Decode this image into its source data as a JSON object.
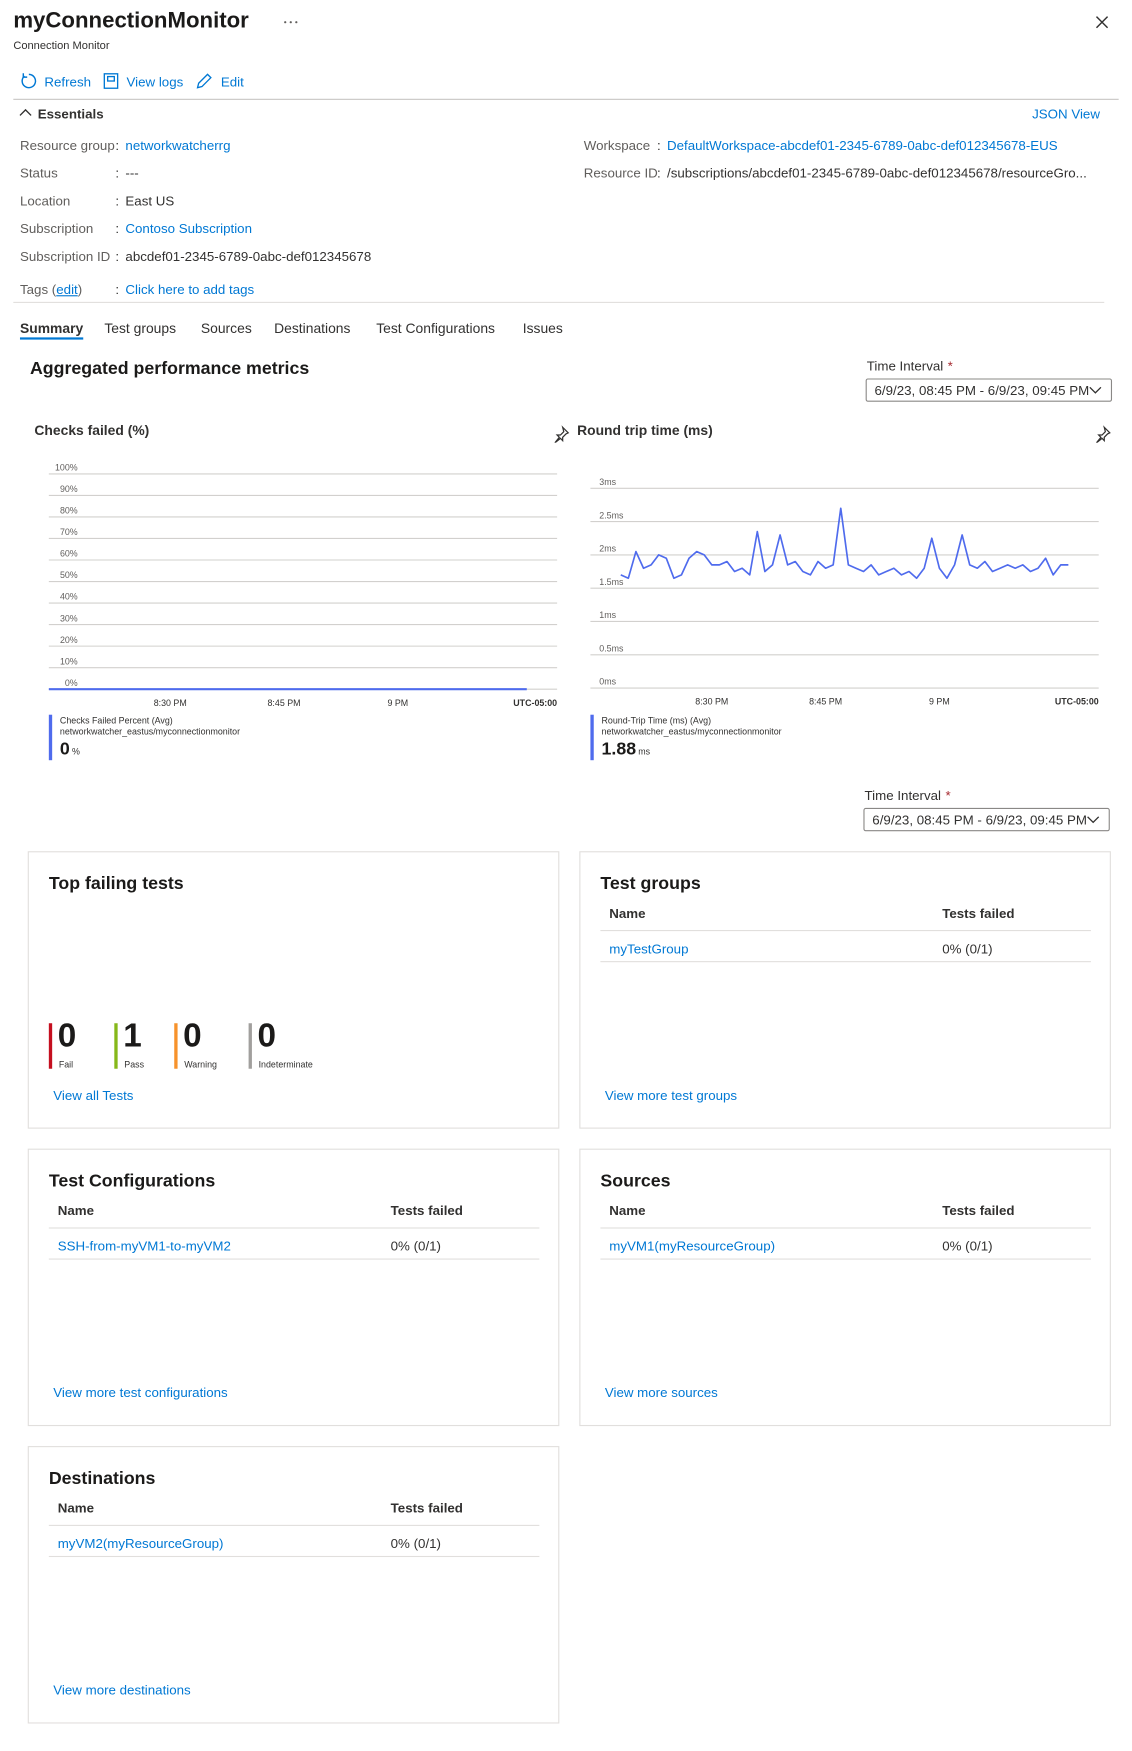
{
  "header": {
    "title": "myConnectionMonitor",
    "subtitle": "Connection Monitor"
  },
  "toolbar": [
    "Refresh",
    "View logs",
    "Edit"
  ],
  "essentials": {
    "heading": "Essentials",
    "json_view": "JSON View",
    "separator": ":",
    "left": [
      {
        "label": "Resource group",
        "value": "networkwatcherrg",
        "link": true
      },
      {
        "label": "Status",
        "value": "---",
        "link": false
      },
      {
        "label": "Location",
        "value": "East US",
        "link": false
      },
      {
        "label": "Subscription",
        "value": "Contoso Subscription",
        "link": true
      },
      {
        "label": "Subscription ID",
        "value": "abcdef01-2345-6789-0abc-def012345678",
        "link": false
      }
    ],
    "tags": {
      "prefix": "Tags (",
      "edit": "edit",
      "suffix": ")",
      "value": "Click here to add tags"
    },
    "right": [
      {
        "label": "Workspace",
        "value": "DefaultWorkspace-abcdef01-2345-6789-0abc-def012345678-EUS",
        "link": true
      },
      {
        "label": "Resource ID",
        "value": "/subscriptions/abcdef01-2345-6789-0abc-def012345678/resourceGro...",
        "link": false
      }
    ]
  },
  "tabs": {
    "items": [
      "Summary",
      "Test groups",
      "Sources",
      "Destinations",
      "Test Configurations",
      "Issues"
    ],
    "active": 0
  },
  "metrics": {
    "heading": "Aggregated performance metrics",
    "time_interval": {
      "label": "Time Interval",
      "required": "*",
      "value": "6/9/23, 08:45 PM - 6/9/23, 09:45 PM"
    }
  },
  "chart_data": [
    {
      "type": "line",
      "title": "Checks failed (%)",
      "grid": true,
      "xlim": [
        1214,
        1281
      ],
      "ylim": [
        0,
        100
      ],
      "xticks": [
        {
          "value": 1230,
          "label": "8:30 PM"
        },
        {
          "value": 1245,
          "label": "8:45 PM"
        },
        {
          "value": 1260,
          "label": "9 PM"
        }
      ],
      "timezone": "UTC-05:00",
      "yticks": [
        {
          "value": 0,
          "label": "0%"
        },
        {
          "value": 10,
          "label": "10%"
        },
        {
          "value": 20,
          "label": "20%"
        },
        {
          "value": 30,
          "label": "30%"
        },
        {
          "value": 40,
          "label": "40%"
        },
        {
          "value": 50,
          "label": "50%"
        },
        {
          "value": 60,
          "label": "60%"
        },
        {
          "value": 70,
          "label": "70%"
        },
        {
          "value": 80,
          "label": "80%"
        },
        {
          "value": 90,
          "label": "90%"
        },
        {
          "value": 100,
          "label": "100%"
        }
      ],
      "x": [
        1214,
        1215,
        1216,
        1217,
        1218,
        1219,
        1220,
        1221,
        1222,
        1223,
        1224,
        1225,
        1226,
        1227,
        1228,
        1229,
        1230,
        1231,
        1232,
        1233,
        1234,
        1235,
        1236,
        1237,
        1238,
        1239,
        1240,
        1241,
        1242,
        1243,
        1244,
        1245,
        1246,
        1247,
        1248,
        1249,
        1250,
        1251,
        1252,
        1253,
        1254,
        1255,
        1256,
        1257,
        1258,
        1259,
        1260,
        1261,
        1262,
        1263,
        1264,
        1265,
        1266,
        1267,
        1268,
        1269,
        1270,
        1271,
        1272,
        1273,
        1274,
        1275,
        1276,
        1277
      ],
      "series": [
        {
          "name": "Checks Failed Percent (Avg)",
          "resource": "networkwatcher_eastus/myconnectionmonitor",
          "color": "#4f6bed",
          "summary_value": 0,
          "summary_unit": "%",
          "values": [
            0,
            0,
            0,
            0,
            0,
            0,
            0,
            0,
            0,
            0,
            0,
            0,
            0,
            0,
            0,
            0,
            0,
            0,
            0,
            0,
            0,
            0,
            0,
            0,
            0,
            0,
            0,
            0,
            0,
            0,
            0,
            0,
            0,
            0,
            0,
            0,
            0,
            0,
            0,
            0,
            0,
            0,
            0,
            0,
            0,
            0,
            0,
            0,
            0,
            0,
            0,
            0,
            0,
            0,
            0,
            0,
            0,
            0,
            0,
            0,
            0,
            0,
            0,
            0
          ]
        }
      ]
    },
    {
      "type": "line",
      "title": "Round trip time (ms)",
      "grid": true,
      "xlim": [
        1214,
        1281
      ],
      "ylim": [
        0,
        3
      ],
      "xticks": [
        {
          "value": 1230,
          "label": "8:30 PM"
        },
        {
          "value": 1245,
          "label": "8:45 PM"
        },
        {
          "value": 1260,
          "label": "9 PM"
        }
      ],
      "timezone": "UTC-05:00",
      "yticks": [
        {
          "value": 0,
          "label": "0ms"
        },
        {
          "value": 0.5,
          "label": "0.5ms"
        },
        {
          "value": 1,
          "label": "1ms"
        },
        {
          "value": 1.5,
          "label": "1.5ms"
        },
        {
          "value": 2,
          "label": "2ms"
        },
        {
          "value": 2.5,
          "label": "2.5ms"
        },
        {
          "value": 3,
          "label": "3ms"
        }
      ],
      "x": [
        1218,
        1219,
        1220,
        1221,
        1222,
        1223,
        1224,
        1225,
        1226,
        1227,
        1228,
        1229,
        1230,
        1231,
        1232,
        1233,
        1234,
        1235,
        1236,
        1237,
        1238,
        1239,
        1240,
        1241,
        1242,
        1243,
        1244,
        1245,
        1246,
        1247,
        1248,
        1249,
        1250,
        1251,
        1252,
        1253,
        1254,
        1255,
        1256,
        1257,
        1258,
        1259,
        1260,
        1261,
        1262,
        1263,
        1264,
        1265,
        1266,
        1267,
        1268,
        1269,
        1270,
        1271,
        1272,
        1273,
        1274,
        1275,
        1276,
        1277
      ],
      "series": [
        {
          "name": "Round-Trip Time (ms) (Avg)",
          "resource": "networkwatcher_eastus/myconnectionmonitor",
          "color": "#4f6bed",
          "summary_value": 1.88,
          "summary_unit": "ms",
          "values": [
            1.7,
            1.65,
            2.05,
            1.8,
            1.85,
            2,
            1.95,
            1.65,
            1.7,
            1.95,
            2.05,
            2,
            1.85,
            1.85,
            1.9,
            1.75,
            1.8,
            1.7,
            2.35,
            1.75,
            1.85,
            2.3,
            1.85,
            1.9,
            1.75,
            1.7,
            1.9,
            1.8,
            1.85,
            2.7,
            1.85,
            1.8,
            1.75,
            1.85,
            1.7,
            1.75,
            1.8,
            1.7,
            1.75,
            1.65,
            1.8,
            2.25,
            1.8,
            1.65,
            1.85,
            2.3,
            1.85,
            1.8,
            1.9,
            1.75,
            1.8,
            1.85,
            1.8,
            1.85,
            1.75,
            1.8,
            1.95,
            1.7,
            1.85,
            1.85
          ]
        }
      ]
    },
    {
      "type": "pie",
      "title": "Top failing tests",
      "categories": [
        "Fail",
        "Pass",
        "Warning",
        "Indeterminate"
      ],
      "values": [
        0,
        1,
        0,
        0
      ],
      "colors": [
        "#c50f1f",
        "#86b81a",
        "#f7922b",
        "#a19f9d"
      ],
      "center_value": 1,
      "link": "View all Tests"
    }
  ],
  "cards": [
    {
      "title": "Test groups",
      "columns": [
        "Name",
        "Tests failed"
      ],
      "rows": [
        [
          "myTestGroup",
          "0% (0/1)"
        ]
      ],
      "link": "View more test groups"
    },
    {
      "title": "Test Configurations",
      "columns": [
        "Name",
        "Tests failed"
      ],
      "rows": [
        [
          "SSH-from-myVM1-to-myVM2",
          "0% (0/1)"
        ]
      ],
      "link": "View more test configurations"
    },
    {
      "title": "Sources",
      "columns": [
        "Name",
        "Tests failed"
      ],
      "rows": [
        [
          "myVM1(myResourceGroup)",
          "0% (0/1)"
        ]
      ],
      "link": "View more sources"
    },
    {
      "title": "Destinations",
      "columns": [
        "Name",
        "Tests failed"
      ],
      "rows": [
        [
          "myVM2(myResourceGroup)",
          "0% (0/1)"
        ]
      ],
      "link": "View more destinations"
    }
  ]
}
